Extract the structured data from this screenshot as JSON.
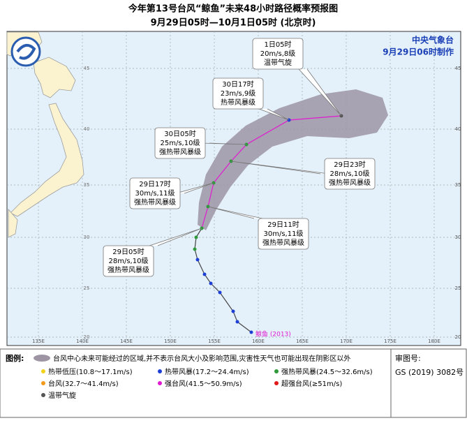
{
  "title": "今年第13号台风“鲸鱼”未来48小时路径概率预报图",
  "subtitle": "9月29日05时—10月1日05时 (北京时)",
  "agency": "中央气象台",
  "issued": "9月29日06时制作",
  "lon_labels": [
    "135E",
    "140E",
    "145E",
    "150E",
    "155E",
    "160E",
    "165E",
    "170E",
    "175E",
    "180E"
  ],
  "lat_labels": [
    "45",
    "40",
    "35",
    "30",
    "25",
    "20"
  ],
  "storm_label": "鲸鱼 (2013)",
  "callouts": [
    {
      "time": "1日05时",
      "wind": "20m/s,8级",
      "grade": "温带气旋"
    },
    {
      "time": "30日17时",
      "wind": "23m/s,9级",
      "grade": "热带风暴级"
    },
    {
      "time": "30日05时",
      "wind": "25m/s,10级",
      "grade": "强热带风暴级"
    },
    {
      "time": "29日23时",
      "wind": "28m/s,10级",
      "grade": "强热带风暴级"
    },
    {
      "time": "29日17时",
      "wind": "30m/s,11级",
      "grade": "强热带风暴级"
    },
    {
      "time": "29日11时",
      "wind": "30m/s,11级",
      "grade": "强热带风暴级"
    },
    {
      "time": "29日05时",
      "wind": "28m/s,10级",
      "grade": "强热带风暴级"
    }
  ],
  "legend": {
    "title": "图例:",
    "cone": "台风中心未来可能经过的区域,并不表示台风大小及影响范围,灾害性天气也可能出现在阴影区以外",
    "items": [
      {
        "label": "热带低压(10.8～17.1m/s)",
        "color": "#f2d21b"
      },
      {
        "label": "热带风暴(17.2～24.4m/s)",
        "color": "#1d3fd6"
      },
      {
        "label": "强热带风暴(24.5～32.6m/s)",
        "color": "#2e9a3c"
      },
      {
        "label": "台风(32.7～41.4m/s)",
        "color": "#f29a1b"
      },
      {
        "label": "强台风(41.5～50.9m/s)",
        "color": "#e01ad0"
      },
      {
        "label": "超强台风(≥51m/s)",
        "color": "#e01b1b"
      },
      {
        "label": "温带气旋",
        "color": "#555555"
      }
    ]
  },
  "approval": {
    "label": "审图号:",
    "number": "GS (2019) 3082号"
  }
}
